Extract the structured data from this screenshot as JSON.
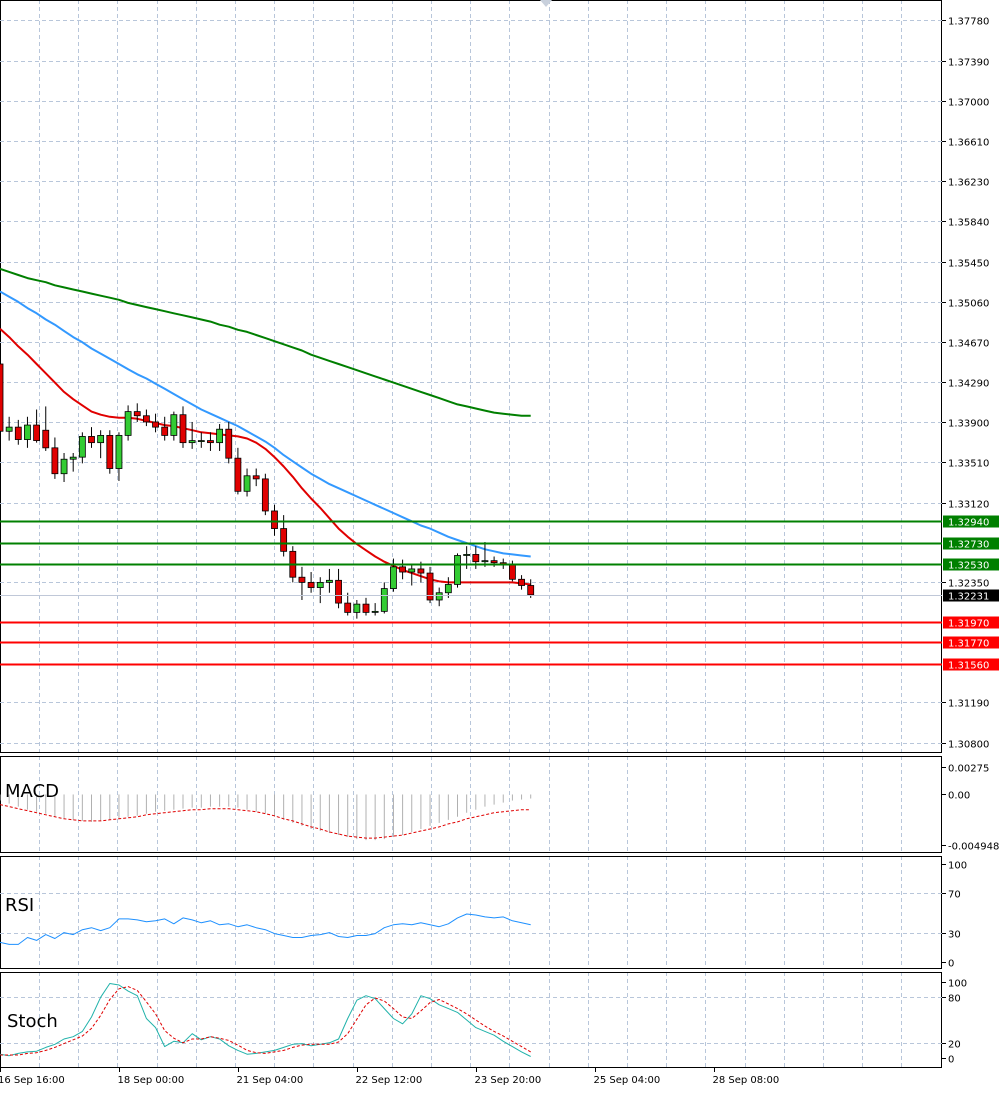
{
  "chart_data": {
    "type": "candlestick",
    "main": {
      "y_ticks": [
        "1.37780",
        "1.37390",
        "1.37000",
        "1.36610",
        "1.36230",
        "1.35840",
        "1.35450",
        "1.35060",
        "1.34670",
        "1.34290",
        "1.33900",
        "1.33510",
        "1.33120",
        "1.32350",
        "1.31190",
        "1.30800"
      ],
      "ylim": [
        1.3075,
        1.3788
      ],
      "current_price": "1.32231",
      "current_price_value": 1.32231,
      "resistance_levels": [
        {
          "label": "1.32940",
          "value": 1.3294,
          "color": "#008000"
        },
        {
          "label": "1.32730",
          "value": 1.3273,
          "color": "#008000"
        },
        {
          "label": "1.32530",
          "value": 1.3253,
          "color": "#008000"
        }
      ],
      "support_levels": [
        {
          "label": "1.31970",
          "value": 1.3197,
          "color": "#ff0000"
        },
        {
          "label": "1.31770",
          "value": 1.3177,
          "color": "#ff0000"
        },
        {
          "label": "1.31560",
          "value": 1.3156,
          "color": "#ff0000"
        }
      ],
      "candles": [
        {
          "o": 1.3446,
          "h": 1.3455,
          "l": 1.3376,
          "c": 1.3381
        },
        {
          "o": 1.3381,
          "h": 1.3395,
          "l": 1.3372,
          "c": 1.3385
        },
        {
          "o": 1.3385,
          "h": 1.3392,
          "l": 1.3368,
          "c": 1.3373
        },
        {
          "o": 1.3373,
          "h": 1.3395,
          "l": 1.3365,
          "c": 1.3387
        },
        {
          "o": 1.3387,
          "h": 1.3402,
          "l": 1.337,
          "c": 1.3372
        },
        {
          "o": 1.3382,
          "h": 1.3405,
          "l": 1.3362,
          "c": 1.3365
        },
        {
          "o": 1.3365,
          "h": 1.3375,
          "l": 1.3335,
          "c": 1.334
        },
        {
          "o": 1.334,
          "h": 1.336,
          "l": 1.3332,
          "c": 1.3354
        },
        {
          "o": 1.3354,
          "h": 1.336,
          "l": 1.3342,
          "c": 1.3356
        },
        {
          "o": 1.3356,
          "h": 1.338,
          "l": 1.335,
          "c": 1.3376
        },
        {
          "o": 1.3376,
          "h": 1.3385,
          "l": 1.3365,
          "c": 1.337
        },
        {
          "o": 1.337,
          "h": 1.3382,
          "l": 1.3355,
          "c": 1.3377
        },
        {
          "o": 1.3377,
          "h": 1.3382,
          "l": 1.334,
          "c": 1.3345
        },
        {
          "o": 1.3345,
          "h": 1.338,
          "l": 1.3333,
          "c": 1.3377
        },
        {
          "o": 1.3377,
          "h": 1.3406,
          "l": 1.3372,
          "c": 1.34
        },
        {
          "o": 1.34,
          "h": 1.3408,
          "l": 1.339,
          "c": 1.3396
        },
        {
          "o": 1.3396,
          "h": 1.3402,
          "l": 1.3386,
          "c": 1.339
        },
        {
          "o": 1.339,
          "h": 1.3398,
          "l": 1.338,
          "c": 1.3385
        },
        {
          "o": 1.3385,
          "h": 1.3395,
          "l": 1.3372,
          "c": 1.3377
        },
        {
          "o": 1.3377,
          "h": 1.34,
          "l": 1.3372,
          "c": 1.3397
        },
        {
          "o": 1.3397,
          "h": 1.3405,
          "l": 1.3365,
          "c": 1.337
        },
        {
          "o": 1.337,
          "h": 1.339,
          "l": 1.3364,
          "c": 1.3372
        },
        {
          "o": 1.3372,
          "h": 1.338,
          "l": 1.3365,
          "c": 1.3372
        },
        {
          "o": 1.3372,
          "h": 1.338,
          "l": 1.3362,
          "c": 1.337
        },
        {
          "o": 1.337,
          "h": 1.3388,
          "l": 1.3362,
          "c": 1.3383
        },
        {
          "o": 1.3383,
          "h": 1.339,
          "l": 1.335,
          "c": 1.3355
        },
        {
          "o": 1.3355,
          "h": 1.3365,
          "l": 1.332,
          "c": 1.3323
        },
        {
          "o": 1.3323,
          "h": 1.3345,
          "l": 1.3318,
          "c": 1.3338
        },
        {
          "o": 1.3338,
          "h": 1.3345,
          "l": 1.3328,
          "c": 1.3335
        },
        {
          "o": 1.3335,
          "h": 1.334,
          "l": 1.33,
          "c": 1.3304
        },
        {
          "o": 1.3304,
          "h": 1.331,
          "l": 1.328,
          "c": 1.3287
        },
        {
          "o": 1.3287,
          "h": 1.33,
          "l": 1.326,
          "c": 1.3265
        },
        {
          "o": 1.3265,
          "h": 1.327,
          "l": 1.3235,
          "c": 1.324
        },
        {
          "o": 1.324,
          "h": 1.325,
          "l": 1.3218,
          "c": 1.3235
        },
        {
          "o": 1.3235,
          "h": 1.3245,
          "l": 1.3225,
          "c": 1.323
        },
        {
          "o": 1.323,
          "h": 1.324,
          "l": 1.3215,
          "c": 1.3235
        },
        {
          "o": 1.3235,
          "h": 1.3248,
          "l": 1.3225,
          "c": 1.3237
        },
        {
          "o": 1.3237,
          "h": 1.3248,
          "l": 1.321,
          "c": 1.3215
        },
        {
          "o": 1.3215,
          "h": 1.3225,
          "l": 1.3203,
          "c": 1.3206
        },
        {
          "o": 1.3206,
          "h": 1.3218,
          "l": 1.32,
          "c": 1.3214
        },
        {
          "o": 1.3214,
          "h": 1.322,
          "l": 1.3203,
          "c": 1.3206
        },
        {
          "o": 1.3206,
          "h": 1.3215,
          "l": 1.3203,
          "c": 1.3207
        },
        {
          "o": 1.3207,
          "h": 1.3235,
          "l": 1.3205,
          "c": 1.3229
        },
        {
          "o": 1.3229,
          "h": 1.3258,
          "l": 1.3226,
          "c": 1.325
        },
        {
          "o": 1.325,
          "h": 1.3257,
          "l": 1.3238,
          "c": 1.3245
        },
        {
          "o": 1.3245,
          "h": 1.3253,
          "l": 1.3232,
          "c": 1.3248
        },
        {
          "o": 1.3248,
          "h": 1.3255,
          "l": 1.3235,
          "c": 1.3244
        },
        {
          "o": 1.3244,
          "h": 1.325,
          "l": 1.3215,
          "c": 1.3218
        },
        {
          "o": 1.3218,
          "h": 1.323,
          "l": 1.3212,
          "c": 1.3225
        },
        {
          "o": 1.3225,
          "h": 1.324,
          "l": 1.322,
          "c": 1.3233
        },
        {
          "o": 1.3233,
          "h": 1.3263,
          "l": 1.323,
          "c": 1.3261
        },
        {
          "o": 1.3261,
          "h": 1.327,
          "l": 1.3248,
          "c": 1.3262
        },
        {
          "o": 1.3262,
          "h": 1.327,
          "l": 1.3248,
          "c": 1.3255
        },
        {
          "o": 1.3255,
          "h": 1.3274,
          "l": 1.325,
          "c": 1.3256
        },
        {
          "o": 1.3256,
          "h": 1.326,
          "l": 1.325,
          "c": 1.3254
        },
        {
          "o": 1.3254,
          "h": 1.3258,
          "l": 1.3248,
          "c": 1.3252
        },
        {
          "o": 1.3252,
          "h": 1.3256,
          "l": 1.3236,
          "c": 1.3238
        },
        {
          "o": 1.3238,
          "h": 1.3242,
          "l": 1.3228,
          "c": 1.3232
        },
        {
          "o": 1.3232,
          "h": 1.3238,
          "l": 1.322,
          "c": 1.3223
        }
      ],
      "ma_red": [
        1.348,
        1.3472,
        1.3463,
        1.3455,
        1.3446,
        1.3437,
        1.3428,
        1.3419,
        1.3412,
        1.3406,
        1.34,
        1.3397,
        1.3395,
        1.3394,
        1.3394,
        1.3393,
        1.3391,
        1.3389,
        1.3387,
        1.3386,
        1.3384,
        1.3382,
        1.338,
        1.3379,
        1.3378,
        1.3377,
        1.3376,
        1.3374,
        1.337,
        1.3364,
        1.3356,
        1.3347,
        1.3337,
        1.3326,
        1.3316,
        1.3307,
        1.3297,
        1.3287,
        1.3279,
        1.3272,
        1.3266,
        1.326,
        1.3255,
        1.3251,
        1.3247,
        1.3244,
        1.3241,
        1.3238,
        1.3236,
        1.3235,
        1.3235,
        1.3235,
        1.3235,
        1.3235,
        1.3235,
        1.3235,
        1.3235,
        1.3234,
        1.3233
      ],
      "ma_blue": [
        1.3516,
        1.3511,
        1.3506,
        1.35,
        1.3495,
        1.3489,
        1.3484,
        1.3478,
        1.3472,
        1.3467,
        1.3461,
        1.3456,
        1.3451,
        1.3446,
        1.3441,
        1.3436,
        1.3432,
        1.3427,
        1.3422,
        1.3417,
        1.3412,
        1.3407,
        1.3402,
        1.3398,
        1.3394,
        1.339,
        1.3386,
        1.3381,
        1.3376,
        1.3371,
        1.3365,
        1.3358,
        1.3352,
        1.3346,
        1.334,
        1.3335,
        1.333,
        1.3326,
        1.3322,
        1.3318,
        1.3314,
        1.331,
        1.3306,
        1.3302,
        1.3298,
        1.3294,
        1.329,
        1.3287,
        1.3283,
        1.3279,
        1.3276,
        1.3273,
        1.327,
        1.3267,
        1.3265,
        1.3263,
        1.3262,
        1.3261,
        1.326
      ],
      "ma_green": [
        1.3538,
        1.3535,
        1.3532,
        1.3529,
        1.3527,
        1.3525,
        1.3522,
        1.352,
        1.3518,
        1.3516,
        1.3514,
        1.3512,
        1.351,
        1.3508,
        1.3505,
        1.3503,
        1.3501,
        1.3499,
        1.3497,
        1.3495,
        1.3493,
        1.3491,
        1.3489,
        1.3487,
        1.3484,
        1.3482,
        1.3479,
        1.3477,
        1.3474,
        1.3471,
        1.3468,
        1.3465,
        1.3462,
        1.3459,
        1.3455,
        1.3452,
        1.3449,
        1.3446,
        1.3443,
        1.344,
        1.3437,
        1.3434,
        1.3431,
        1.3428,
        1.3425,
        1.3422,
        1.3419,
        1.3416,
        1.3413,
        1.341,
        1.3407,
        1.3405,
        1.3403,
        1.3401,
        1.3399,
        1.3398,
        1.3397,
        1.3396,
        1.3396
      ]
    },
    "macd": {
      "label": "MACD",
      "y_ticks": [
        "0.00275",
        "0.00",
        "-0.004948"
      ],
      "ylim": [
        -0.00498,
        0.0032
      ],
      "histogram": [
        -0.0006,
        -0.0009,
        -0.0012,
        -0.0015,
        -0.0017,
        -0.0019,
        -0.0022,
        -0.0024,
        -0.0025,
        -0.0026,
        -0.0027,
        -0.0026,
        -0.0025,
        -0.0024,
        -0.0022,
        -0.0021,
        -0.0019,
        -0.0017,
        -0.0016,
        -0.0015,
        -0.0014,
        -0.0013,
        -0.0013,
        -0.0012,
        -0.0012,
        -0.0012,
        -0.0013,
        -0.0015,
        -0.0017,
        -0.0019,
        -0.0022,
        -0.0025,
        -0.0028,
        -0.0031,
        -0.0034,
        -0.0036,
        -0.0038,
        -0.004,
        -0.0042,
        -0.0044,
        -0.0045,
        -0.0045,
        -0.0044,
        -0.0042,
        -0.004,
        -0.0037,
        -0.0034,
        -0.0031,
        -0.0028,
        -0.0025,
        -0.0022,
        -0.0018,
        -0.0015,
        -0.0012,
        -0.001,
        -0.0008,
        -0.0006,
        -0.0005,
        -0.0004
      ],
      "signal": [
        -0.001,
        -0.0012,
        -0.0014,
        -0.0016,
        -0.0018,
        -0.002,
        -0.0022,
        -0.0024,
        -0.0025,
        -0.0026,
        -0.0026,
        -0.0026,
        -0.0025,
        -0.0024,
        -0.0023,
        -0.0022,
        -0.002,
        -0.0019,
        -0.0018,
        -0.0017,
        -0.0016,
        -0.0015,
        -0.0015,
        -0.0014,
        -0.0014,
        -0.0014,
        -0.0015,
        -0.0016,
        -0.0017,
        -0.0019,
        -0.0021,
        -0.0024,
        -0.0026,
        -0.0029,
        -0.0032,
        -0.0034,
        -0.0037,
        -0.0039,
        -0.0041,
        -0.0042,
        -0.0043,
        -0.0043,
        -0.0042,
        -0.0041,
        -0.004,
        -0.0038,
        -0.0036,
        -0.0034,
        -0.0032,
        -0.0029,
        -0.0027,
        -0.0024,
        -0.0022,
        -0.002,
        -0.0018,
        -0.0017,
        -0.0016,
        -0.0015,
        -0.0015
      ]
    },
    "rsi": {
      "label": "RSI",
      "y_ticks": [
        "100",
        "70",
        "30",
        "0"
      ],
      "ylim": [
        0,
        100
      ],
      "values": [
        20,
        18,
        18,
        25,
        22,
        28,
        24,
        30,
        28,
        33,
        35,
        32,
        35,
        44,
        44,
        43,
        41,
        42,
        44,
        39,
        45,
        43,
        40,
        42,
        38,
        39,
        36,
        38,
        35,
        33,
        29,
        27,
        25,
        25,
        27,
        28,
        30,
        26,
        25,
        27,
        27,
        29,
        35,
        38,
        39,
        38,
        40,
        38,
        36,
        39,
        45,
        49,
        48,
        46,
        45,
        46,
        42,
        40,
        38
      ]
    },
    "stoch": {
      "label": "Stoch",
      "y_ticks": [
        "100",
        "80",
        "20",
        "0"
      ],
      "ylim": [
        0,
        100
      ],
      "main": [
        5,
        3,
        6,
        8,
        9,
        14,
        18,
        25,
        28,
        35,
        54,
        80,
        98,
        96,
        88,
        82,
        52,
        40,
        15,
        22,
        20,
        32,
        24,
        28,
        25,
        16,
        10,
        5,
        6,
        8,
        10,
        14,
        18,
        19,
        16,
        18,
        20,
        25,
        52,
        76,
        82,
        78,
        65,
        52,
        45,
        58,
        82,
        78,
        70,
        65,
        60,
        50,
        40,
        35,
        30,
        22,
        15,
        8,
        2
      ],
      "signal": [
        4,
        4,
        4,
        6,
        7,
        10,
        14,
        19,
        24,
        29,
        39,
        56,
        77,
        91,
        94,
        89,
        74,
        58,
        36,
        26,
        20,
        25,
        25,
        28,
        26,
        23,
        17,
        10,
        7,
        6,
        8,
        10,
        14,
        17,
        18,
        18,
        18,
        21,
        32,
        51,
        70,
        79,
        75,
        65,
        54,
        52,
        62,
        73,
        77,
        71,
        65,
        58,
        50,
        42,
        35,
        29,
        22,
        15,
        8
      ]
    },
    "x_ticks": [
      {
        "label": "16 Sep 16:00",
        "index": 0
      },
      {
        "label": "18 Sep 00:00",
        "index": 10
      },
      {
        "label": "21 Sep 04:00",
        "index": 20
      },
      {
        "label": "22 Sep 12:00",
        "index": 30
      },
      {
        "label": "23 Sep 20:00",
        "index": 40
      },
      {
        "label": "25 Sep 04:00",
        "index": 50
      },
      {
        "label": "28 Sep 08:00",
        "index": 60
      }
    ]
  }
}
